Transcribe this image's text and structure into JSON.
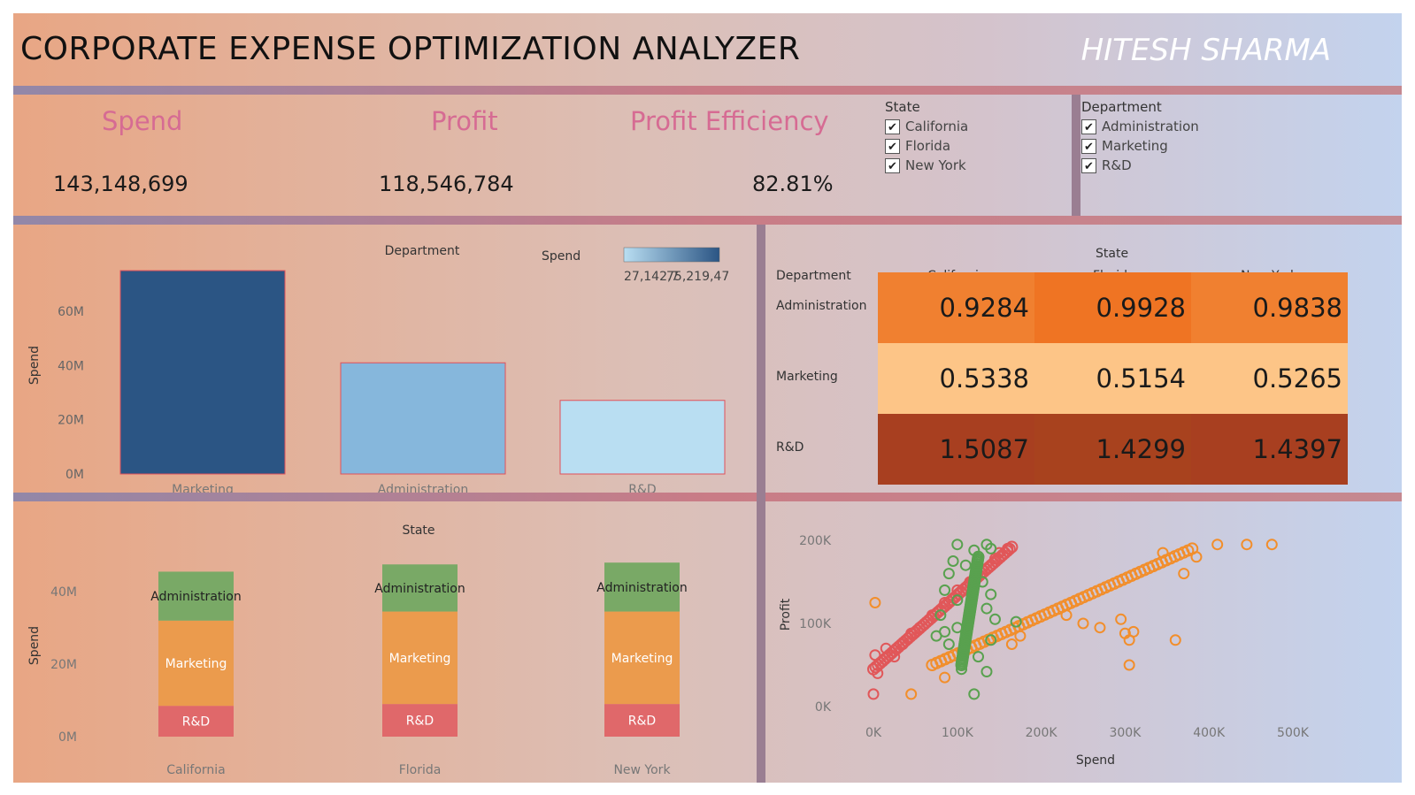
{
  "header": {
    "title": "CORPORATE EXPENSE OPTIMIZATION ANALYZER",
    "author": "HITESH SHARMA"
  },
  "kpis": [
    {
      "label": "Spend",
      "value": "143,148,699"
    },
    {
      "label": "Profit",
      "value": "118,546,784"
    },
    {
      "label": "Profit Efficiency",
      "value": "82.81%"
    }
  ],
  "filters": {
    "state": {
      "title": "State",
      "items": [
        "California",
        "Florida",
        "New York"
      ]
    },
    "department": {
      "title": "Department",
      "items": [
        "Administration",
        "Marketing",
        "R&D"
      ]
    }
  },
  "colors": {
    "bar_dark": "#2b5584",
    "bar_mid": "#86b7dc",
    "bar_light": "#b9def2",
    "heat_high": "#f08030",
    "heat_high2": "#ef7423",
    "heat_low": "#fdc587",
    "heat_top": "#a83f20",
    "stack_admin": "#79a966",
    "stack_marketing": "#eb9b4d",
    "stack_rnd": "#e0686a",
    "scatter_red": "#e15759",
    "scatter_orange": "#f28e2b",
    "scatter_green": "#59a14f"
  },
  "chart_data": [
    {
      "type": "bar",
      "title": "Department",
      "ylabel": "Spend",
      "categories": [
        "Marketing",
        "Administration",
        "R&D"
      ],
      "values": [
        75,
        41,
        27.14
      ],
      "ylim": [
        0,
        75
      ],
      "yticks": [
        "0M",
        "20M",
        "40M",
        "60M"
      ],
      "legend": {
        "title": "Spend",
        "min_label": "27,142,7",
        "max_label": "75,219,47"
      }
    },
    {
      "type": "heatmap",
      "column_title": "State",
      "row_header": "Department",
      "columns": [
        "California",
        "Florida",
        "New York"
      ],
      "rows": [
        "Administration",
        "Marketing",
        "R&D"
      ],
      "values": [
        [
          "0.9284",
          "0.9928",
          "0.9838"
        ],
        [
          "0.5338",
          "0.5154",
          "0.5265"
        ],
        [
          "1.5087",
          "1.4299",
          "1.4397"
        ]
      ]
    },
    {
      "type": "bar",
      "stacked": true,
      "title": "State",
      "ylabel": "Spend",
      "categories": [
        "California",
        "Florida",
        "New York"
      ],
      "yticks": [
        "0M",
        "20M",
        "40M"
      ],
      "ylim": [
        0,
        50
      ],
      "series": [
        {
          "name": "R&D",
          "values": [
            8.5,
            9,
            9
          ]
        },
        {
          "name": "Marketing",
          "values": [
            23.5,
            25.5,
            25.5
          ]
        },
        {
          "name": "Administration",
          "values": [
            13.5,
            13,
            13.5
          ]
        }
      ]
    },
    {
      "type": "scatter",
      "xlabel": "Spend",
      "ylabel": "Profit",
      "xticks": [
        "0K",
        "100K",
        "200K",
        "300K",
        "400K",
        "500K"
      ],
      "yticks": [
        "0K",
        "100K",
        "200K"
      ],
      "xlim": [
        0,
        500000
      ],
      "ylim": [
        0,
        200000
      ],
      "series": [
        {
          "name": "R&D",
          "color": "#e15759",
          "trend": [
            [
              0,
              45000
            ],
            [
              165000,
              192000
            ]
          ],
          "points": [
            [
              0,
              15000
            ],
            [
              2000,
              62000
            ],
            [
              5000,
              40000
            ],
            [
              15000,
              70000
            ],
            [
              25000,
              60000
            ],
            [
              35000,
              75000
            ],
            [
              45000,
              88000
            ],
            [
              55000,
              95000
            ],
            [
              70000,
              110000
            ],
            [
              85000,
              125000
            ],
            [
              100000,
              140000
            ],
            [
              115000,
              150000
            ],
            [
              130000,
              165000
            ],
            [
              145000,
              178000
            ],
            [
              160000,
              190000
            ],
            [
              150000,
              185000
            ]
          ]
        },
        {
          "name": "Marketing",
          "color": "#f28e2b",
          "trend": [
            [
              70000,
              50000
            ],
            [
              380000,
              190000
            ]
          ],
          "points": [
            [
              2000,
              125000
            ],
            [
              45000,
              15000
            ],
            [
              85000,
              35000
            ],
            [
              165000,
              75000
            ],
            [
              175000,
              85000
            ],
            [
              230000,
              110000
            ],
            [
              250000,
              100000
            ],
            [
              270000,
              95000
            ],
            [
              300000,
              88000
            ],
            [
              305000,
              80000
            ],
            [
              305000,
              50000
            ],
            [
              360000,
              80000
            ],
            [
              370000,
              160000
            ],
            [
              385000,
              180000
            ],
            [
              410000,
              195000
            ],
            [
              445000,
              195000
            ],
            [
              475000,
              195000
            ],
            [
              345000,
              185000
            ],
            [
              295000,
              105000
            ],
            [
              310000,
              90000
            ]
          ]
        },
        {
          "name": "Administration",
          "color": "#59a14f",
          "trend": [
            [
              105000,
              50000
            ],
            [
              125000,
              180000
            ]
          ],
          "points": [
            [
              100000,
              195000
            ],
            [
              135000,
              195000
            ],
            [
              140000,
              190000
            ],
            [
              120000,
              188000
            ],
            [
              95000,
              175000
            ],
            [
              110000,
              170000
            ],
            [
              90000,
              160000
            ],
            [
              130000,
              150000
            ],
            [
              85000,
              140000
            ],
            [
              140000,
              135000
            ],
            [
              100000,
              128000
            ],
            [
              135000,
              118000
            ],
            [
              80000,
              110000
            ],
            [
              145000,
              105000
            ],
            [
              170000,
              102000
            ],
            [
              100000,
              95000
            ],
            [
              85000,
              90000
            ],
            [
              75000,
              85000
            ],
            [
              90000,
              75000
            ],
            [
              140000,
              80000
            ],
            [
              125000,
              60000
            ],
            [
              105000,
              45000
            ],
            [
              135000,
              42000
            ],
            [
              120000,
              15000
            ]
          ]
        }
      ]
    }
  ]
}
